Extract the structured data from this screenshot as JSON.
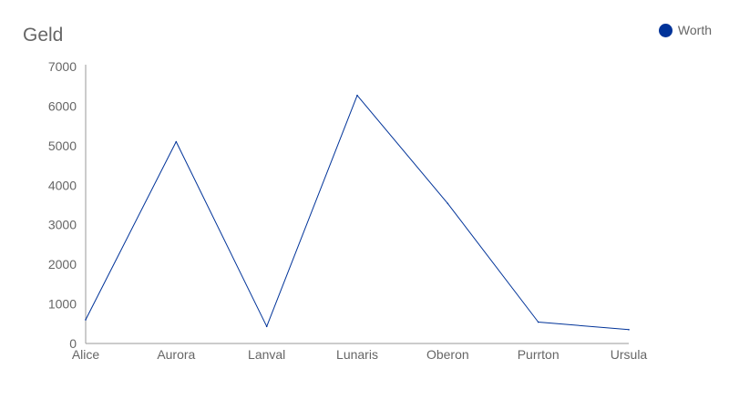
{
  "chart_data": {
    "type": "line",
    "title": "Geld",
    "xlabel": "",
    "ylabel": "",
    "categories": [
      "Alice",
      "Aurora",
      "Lanval",
      "Lunaris",
      "Oberon",
      "Purrton",
      "Ursula"
    ],
    "series": [
      {
        "name": "Worth",
        "values": [
          600,
          5100,
          430,
          6270,
          3540,
          540,
          350
        ],
        "color": "#003399"
      }
    ],
    "ylim": [
      0,
      7000
    ],
    "yticks": [
      0,
      1000,
      2000,
      3000,
      4000,
      5000,
      6000,
      7000
    ],
    "grid": false,
    "legend_position": "top-right"
  }
}
